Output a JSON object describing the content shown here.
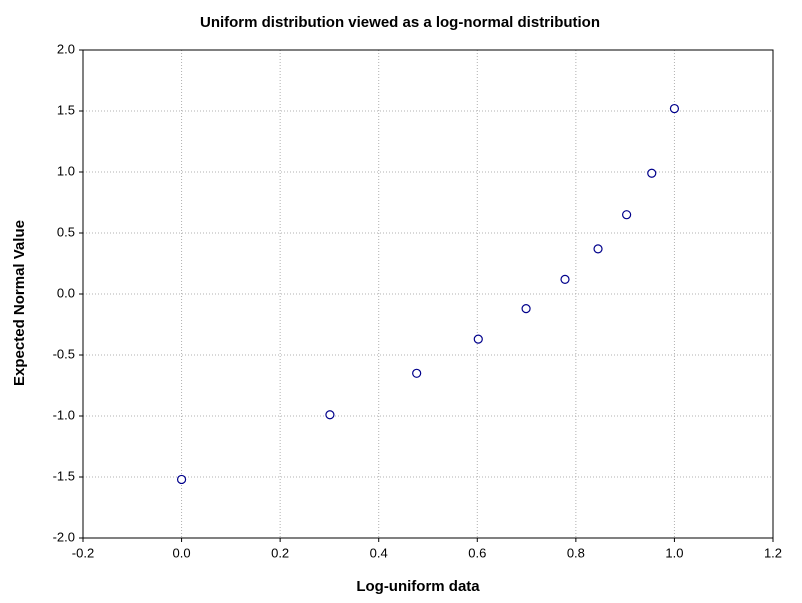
{
  "chart_data": {
    "type": "scatter",
    "title": "Uniform distribution viewed as a log-normal distribution",
    "x_label": "Log-uniform data",
    "y_label": "Expected Normal Value",
    "x": [
      0,
      0.301,
      0.477,
      0.602,
      0.699,
      0.778,
      0.845,
      0.903,
      0.954,
      1.0
    ],
    "values": [
      -1.52,
      -0.99,
      -0.65,
      -0.37,
      -0.12,
      0.12,
      0.37,
      0.65,
      0.99,
      1.52
    ],
    "color": "#00008b",
    "xlim": [
      -0.2,
      1.2
    ],
    "xticks": [
      -0.2,
      {
        "value": 0,
        "label": "0.0"
      },
      0.2,
      0.4,
      0.6,
      0.8,
      {
        "value": 1,
        "label": "1.0"
      },
      1.2
    ],
    "ylim": [
      -2,
      2
    ],
    "yticks": [
      {
        "value": -2,
        "label": "-2.0"
      },
      -1.5,
      {
        "value": -1,
        "label": "-1.0"
      },
      -0.5,
      {
        "value": 0,
        "label": "0.0"
      },
      0.5,
      {
        "value": 1,
        "label": "1.0"
      },
      1.5,
      {
        "value": 2,
        "label": "2.0"
      }
    ],
    "grid": true
  }
}
